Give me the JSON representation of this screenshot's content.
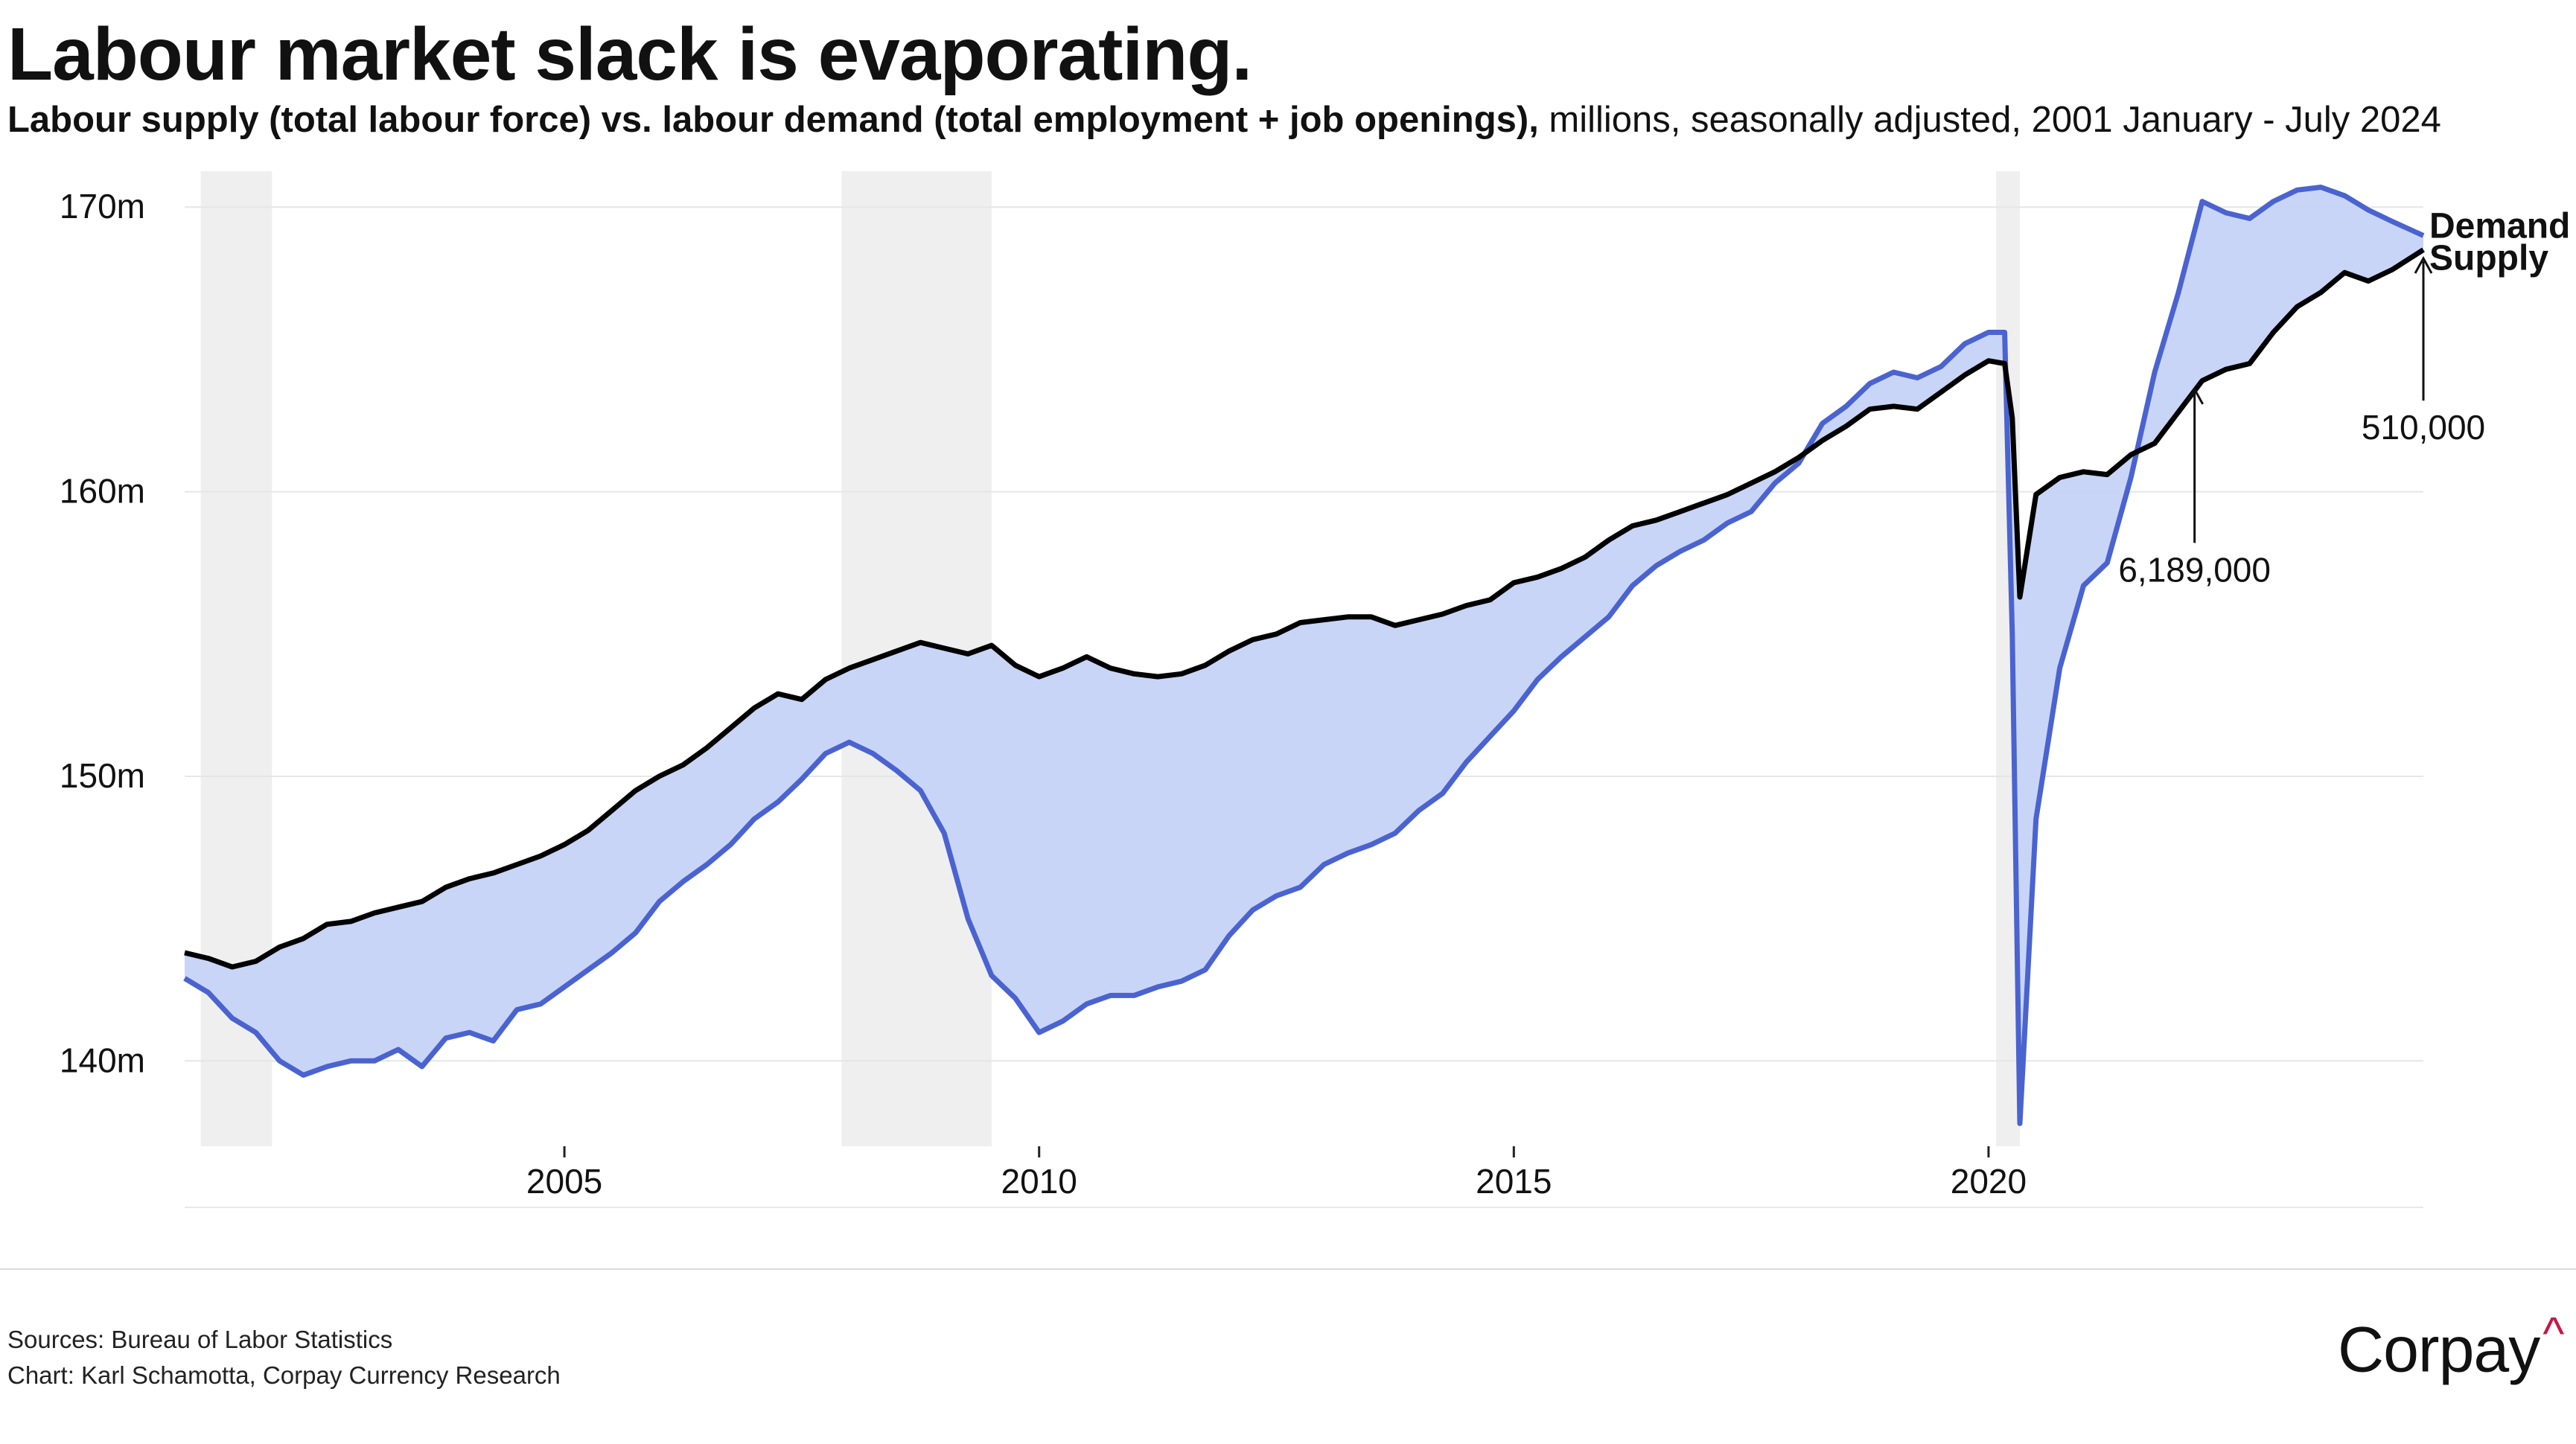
{
  "title": "Labour market slack is evaporating.",
  "subtitle": {
    "bold": "Labour supply (total labour force) vs. labour demand (total employment + job openings),",
    "regular": " millions, seasonally adjusted, 2001 January - July 2024"
  },
  "colors": {
    "demand_line": "#4a63d0",
    "fill": "#c6d3f7",
    "supply_line": "#000000",
    "recession": "#efefef",
    "grid": "#e6e6e6",
    "logo_caret": "#c4184b"
  },
  "chart_data": {
    "type": "line",
    "x_unit": "year",
    "ylim": [
      137,
      171
    ],
    "xlim": [
      2001.0,
      2024.58
    ],
    "y_ticks": [
      {
        "value": 140,
        "label": "140m"
      },
      {
        "value": 150,
        "label": "150m"
      },
      {
        "value": 160,
        "label": "160m"
      },
      {
        "value": 170,
        "label": "170m"
      }
    ],
    "x_ticks": [
      {
        "value": 2005,
        "label": "2005"
      },
      {
        "value": 2010,
        "label": "2010"
      },
      {
        "value": 2015,
        "label": "2015"
      },
      {
        "value": 2020,
        "label": "2020"
      }
    ],
    "recessions": [
      {
        "start": 2001.17,
        "end": 2001.92
      },
      {
        "start": 2007.92,
        "end": 2009.5
      },
      {
        "start": 2020.08,
        "end": 2020.33
      }
    ],
    "fill": "between series",
    "series": [
      {
        "name": "Demand",
        "label": "Demand",
        "role": "demand",
        "points": [
          [
            2001.0,
            142.9
          ],
          [
            2001.25,
            142.4
          ],
          [
            2001.5,
            141.5
          ],
          [
            2001.75,
            141.0
          ],
          [
            2002.0,
            140.0
          ],
          [
            2002.25,
            139.5
          ],
          [
            2002.5,
            139.8
          ],
          [
            2002.75,
            140.0
          ],
          [
            2003.0,
            140.0
          ],
          [
            2003.25,
            140.4
          ],
          [
            2003.5,
            139.8
          ],
          [
            2003.75,
            140.8
          ],
          [
            2004.0,
            141.0
          ],
          [
            2004.25,
            140.7
          ],
          [
            2004.5,
            141.8
          ],
          [
            2004.75,
            142.0
          ],
          [
            2005.0,
            142.6
          ],
          [
            2005.25,
            143.2
          ],
          [
            2005.5,
            143.8
          ],
          [
            2005.75,
            144.5
          ],
          [
            2006.0,
            145.6
          ],
          [
            2006.25,
            146.3
          ],
          [
            2006.5,
            146.9
          ],
          [
            2006.75,
            147.6
          ],
          [
            2007.0,
            148.5
          ],
          [
            2007.25,
            149.1
          ],
          [
            2007.5,
            149.9
          ],
          [
            2007.75,
            150.8
          ],
          [
            2008.0,
            151.2
          ],
          [
            2008.25,
            150.8
          ],
          [
            2008.5,
            150.2
          ],
          [
            2008.75,
            149.5
          ],
          [
            2009.0,
            148.0
          ],
          [
            2009.25,
            145.0
          ],
          [
            2009.5,
            143.0
          ],
          [
            2009.75,
            142.2
          ],
          [
            2010.0,
            141.0
          ],
          [
            2010.25,
            141.4
          ],
          [
            2010.5,
            142.0
          ],
          [
            2010.75,
            142.3
          ],
          [
            2011.0,
            142.3
          ],
          [
            2011.25,
            142.6
          ],
          [
            2011.5,
            142.8
          ],
          [
            2011.75,
            143.2
          ],
          [
            2012.0,
            144.4
          ],
          [
            2012.25,
            145.3
          ],
          [
            2012.5,
            145.8
          ],
          [
            2012.75,
            146.1
          ],
          [
            2013.0,
            146.9
          ],
          [
            2013.25,
            147.3
          ],
          [
            2013.5,
            147.6
          ],
          [
            2013.75,
            148.0
          ],
          [
            2014.0,
            148.8
          ],
          [
            2014.25,
            149.4
          ],
          [
            2014.5,
            150.5
          ],
          [
            2014.75,
            151.4
          ],
          [
            2015.0,
            152.3
          ],
          [
            2015.25,
            153.4
          ],
          [
            2015.5,
            154.2
          ],
          [
            2015.75,
            154.9
          ],
          [
            2016.0,
            155.6
          ],
          [
            2016.25,
            156.7
          ],
          [
            2016.5,
            157.4
          ],
          [
            2016.75,
            157.9
          ],
          [
            2017.0,
            158.3
          ],
          [
            2017.25,
            158.9
          ],
          [
            2017.5,
            159.3
          ],
          [
            2017.75,
            160.3
          ],
          [
            2018.0,
            161.0
          ],
          [
            2018.25,
            162.4
          ],
          [
            2018.5,
            163.0
          ],
          [
            2018.75,
            163.8
          ],
          [
            2019.0,
            164.2
          ],
          [
            2019.25,
            164.0
          ],
          [
            2019.5,
            164.4
          ],
          [
            2019.75,
            165.2
          ],
          [
            2020.0,
            165.6
          ],
          [
            2020.17,
            165.6
          ],
          [
            2020.25,
            155.0
          ],
          [
            2020.33,
            137.8
          ],
          [
            2020.5,
            148.5
          ],
          [
            2020.75,
            153.8
          ],
          [
            2021.0,
            156.7
          ],
          [
            2021.25,
            157.5
          ],
          [
            2021.5,
            160.5
          ],
          [
            2021.75,
            164.2
          ],
          [
            2022.0,
            167.0
          ],
          [
            2022.25,
            170.2
          ],
          [
            2022.5,
            169.8
          ],
          [
            2022.75,
            169.6
          ],
          [
            2023.0,
            170.2
          ],
          [
            2023.25,
            170.6
          ],
          [
            2023.5,
            170.7
          ],
          [
            2023.75,
            170.4
          ],
          [
            2024.0,
            169.9
          ],
          [
            2024.25,
            169.5
          ],
          [
            2024.58,
            169.0
          ]
        ]
      },
      {
        "name": "Supply",
        "label": "Supply",
        "role": "supply",
        "points": [
          [
            2001.0,
            143.8
          ],
          [
            2001.25,
            143.6
          ],
          [
            2001.5,
            143.3
          ],
          [
            2001.75,
            143.5
          ],
          [
            2002.0,
            144.0
          ],
          [
            2002.25,
            144.3
          ],
          [
            2002.5,
            144.8
          ],
          [
            2002.75,
            144.9
          ],
          [
            2003.0,
            145.2
          ],
          [
            2003.25,
            145.4
          ],
          [
            2003.5,
            145.6
          ],
          [
            2003.75,
            146.1
          ],
          [
            2004.0,
            146.4
          ],
          [
            2004.25,
            146.6
          ],
          [
            2004.5,
            146.9
          ],
          [
            2004.75,
            147.2
          ],
          [
            2005.0,
            147.6
          ],
          [
            2005.25,
            148.1
          ],
          [
            2005.5,
            148.8
          ],
          [
            2005.75,
            149.5
          ],
          [
            2006.0,
            150.0
          ],
          [
            2006.25,
            150.4
          ],
          [
            2006.5,
            151.0
          ],
          [
            2006.75,
            151.7
          ],
          [
            2007.0,
            152.4
          ],
          [
            2007.25,
            152.9
          ],
          [
            2007.5,
            152.7
          ],
          [
            2007.75,
            153.4
          ],
          [
            2008.0,
            153.8
          ],
          [
            2008.25,
            154.1
          ],
          [
            2008.5,
            154.4
          ],
          [
            2008.75,
            154.7
          ],
          [
            2009.0,
            154.5
          ],
          [
            2009.25,
            154.3
          ],
          [
            2009.5,
            154.6
          ],
          [
            2009.75,
            153.9
          ],
          [
            2010.0,
            153.5
          ],
          [
            2010.25,
            153.8
          ],
          [
            2010.5,
            154.2
          ],
          [
            2010.75,
            153.8
          ],
          [
            2011.0,
            153.6
          ],
          [
            2011.25,
            153.5
          ],
          [
            2011.5,
            153.6
          ],
          [
            2011.75,
            153.9
          ],
          [
            2012.0,
            154.4
          ],
          [
            2012.25,
            154.8
          ],
          [
            2012.5,
            155.0
          ],
          [
            2012.75,
            155.4
          ],
          [
            2013.0,
            155.5
          ],
          [
            2013.25,
            155.6
          ],
          [
            2013.5,
            155.6
          ],
          [
            2013.75,
            155.3
          ],
          [
            2014.0,
            155.5
          ],
          [
            2014.25,
            155.7
          ],
          [
            2014.5,
            156.0
          ],
          [
            2014.75,
            156.2
          ],
          [
            2015.0,
            156.8
          ],
          [
            2015.25,
            157.0
          ],
          [
            2015.5,
            157.3
          ],
          [
            2015.75,
            157.7
          ],
          [
            2016.0,
            158.3
          ],
          [
            2016.25,
            158.8
          ],
          [
            2016.5,
            159.0
          ],
          [
            2016.75,
            159.3
          ],
          [
            2017.0,
            159.6
          ],
          [
            2017.25,
            159.9
          ],
          [
            2017.5,
            160.3
          ],
          [
            2017.75,
            160.7
          ],
          [
            2018.0,
            161.2
          ],
          [
            2018.25,
            161.8
          ],
          [
            2018.5,
            162.3
          ],
          [
            2018.75,
            162.9
          ],
          [
            2019.0,
            163.0
          ],
          [
            2019.25,
            162.9
          ],
          [
            2019.5,
            163.5
          ],
          [
            2019.75,
            164.1
          ],
          [
            2020.0,
            164.6
          ],
          [
            2020.17,
            164.5
          ],
          [
            2020.25,
            162.6
          ],
          [
            2020.33,
            156.3
          ],
          [
            2020.5,
            159.9
          ],
          [
            2020.75,
            160.5
          ],
          [
            2021.0,
            160.7
          ],
          [
            2021.25,
            160.6
          ],
          [
            2021.5,
            161.3
          ],
          [
            2021.75,
            161.7
          ],
          [
            2022.0,
            162.8
          ],
          [
            2022.25,
            163.9
          ],
          [
            2022.5,
            164.3
          ],
          [
            2022.75,
            164.5
          ],
          [
            2023.0,
            165.6
          ],
          [
            2023.25,
            166.5
          ],
          [
            2023.5,
            167.0
          ],
          [
            2023.75,
            167.7
          ],
          [
            2024.0,
            167.4
          ],
          [
            2024.25,
            167.8
          ],
          [
            2024.58,
            168.5
          ]
        ]
      }
    ],
    "annotations": [
      {
        "text": "6,189,000",
        "x": 2022.17,
        "y_from": 158.2,
        "y_to": 163.6
      },
      {
        "text": "510,000",
        "x": 2024.58,
        "y_from": 163.2,
        "y_to": 168.2
      }
    ]
  },
  "footer": {
    "sources": "Sources: Bureau of Labor Statistics",
    "credit": "Chart: Karl Schamotta, Corpay Currency Research",
    "logo": "Corpay",
    "logo_mark": "^"
  }
}
